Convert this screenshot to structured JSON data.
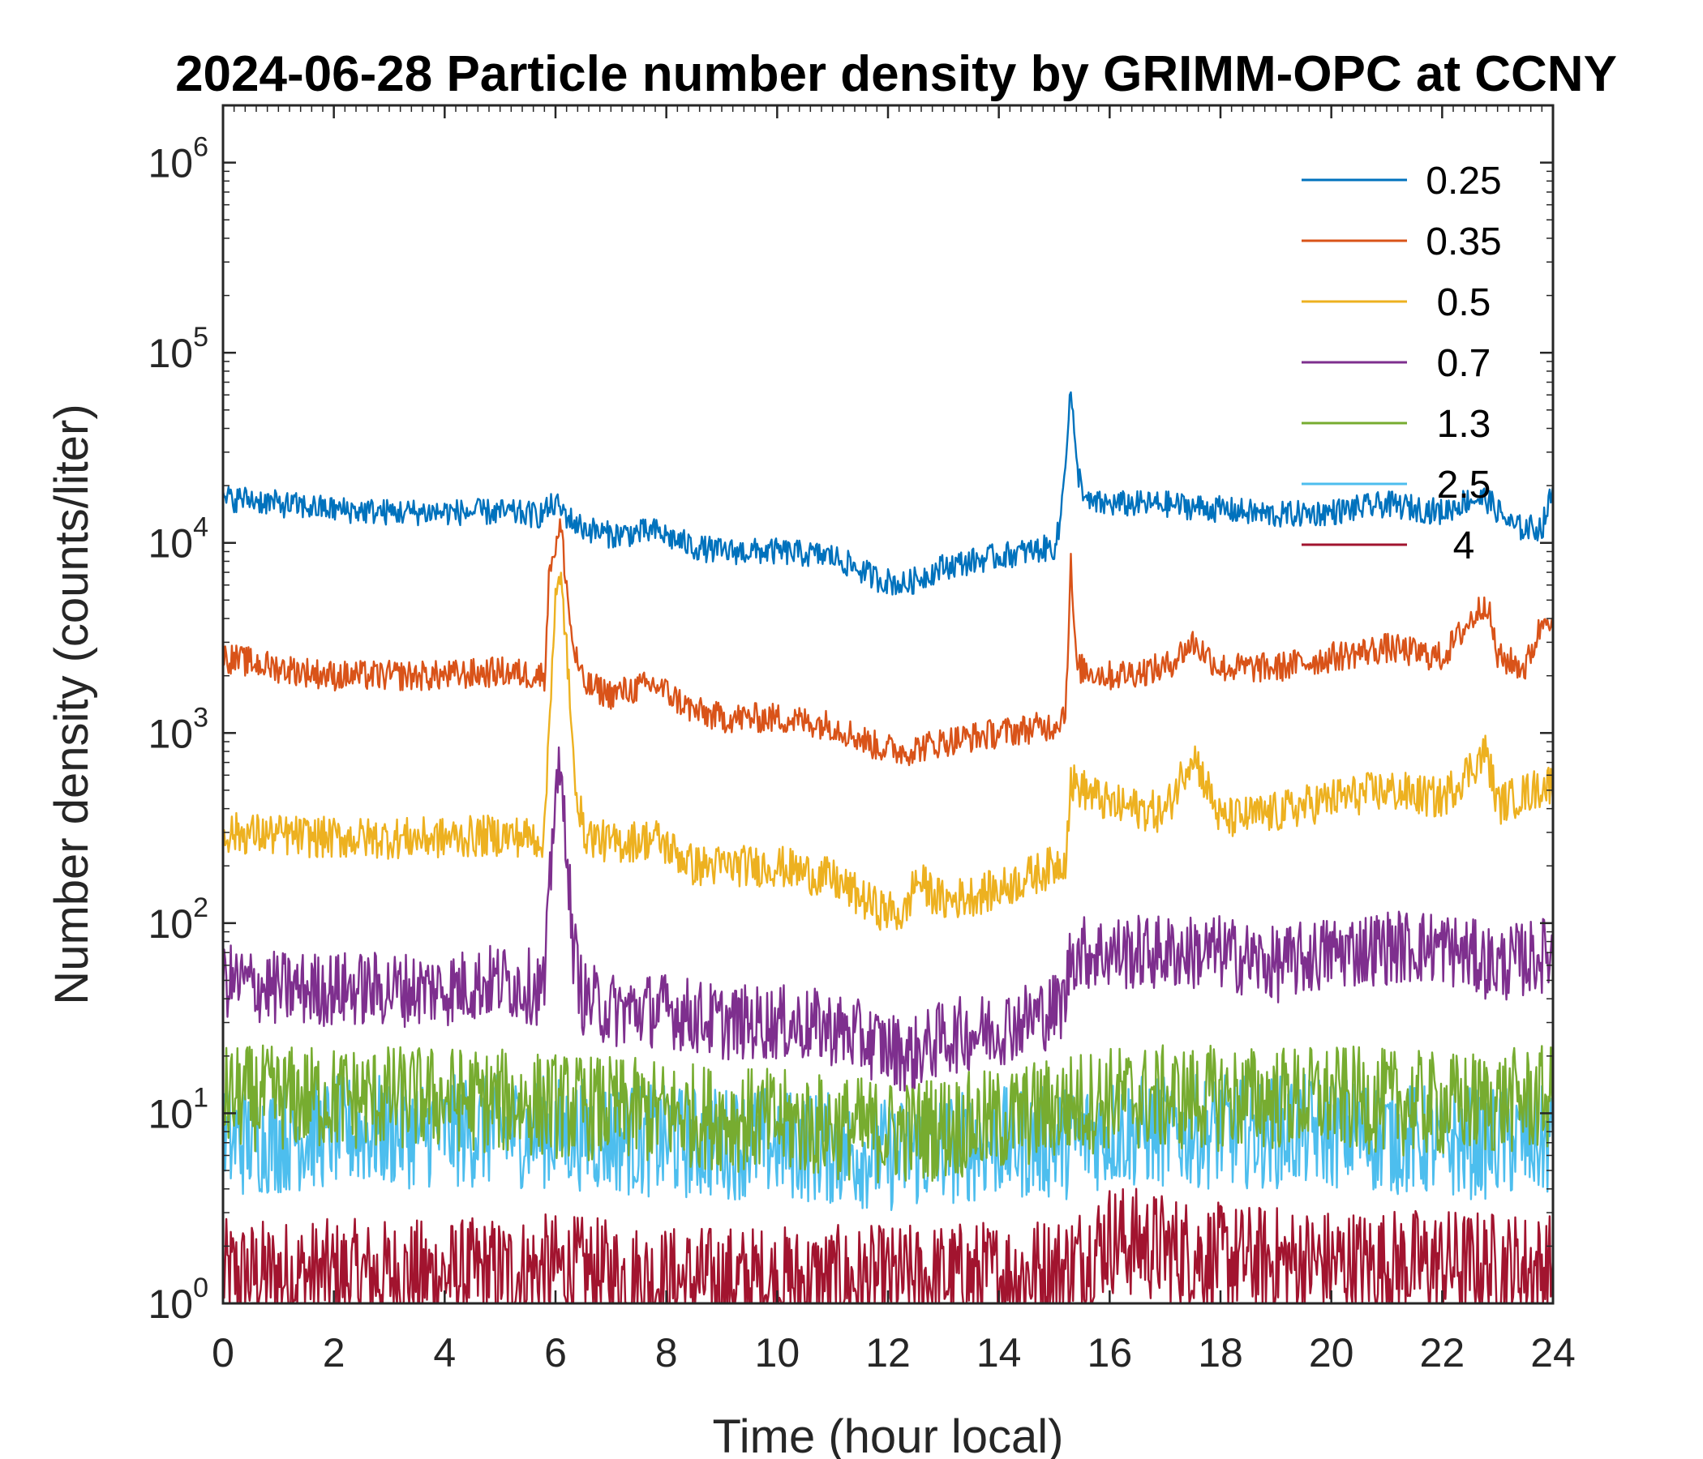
{
  "chart_data": {
    "type": "line",
    "title": "2024-06-28 Particle number density by GRIMM-OPC at CCNY",
    "xlabel": "Time (hour local)",
    "ylabel": "Number density (counts/liter)",
    "xlim": [
      0,
      24
    ],
    "ylim": [
      1,
      2000000
    ],
    "yscale": "log",
    "xticks": [
      0,
      2,
      4,
      6,
      8,
      10,
      12,
      14,
      16,
      18,
      20,
      22,
      24
    ],
    "xtick_labels": [
      "0",
      "2",
      "4",
      "6",
      "8",
      "10",
      "12",
      "14",
      "16",
      "18",
      "20",
      "22",
      "24"
    ],
    "yticks": [
      1,
      10,
      100,
      1000,
      10000,
      100000,
      1000000
    ],
    "ytick_labels": [
      {
        "base": "10",
        "exp": "0"
      },
      {
        "base": "10",
        "exp": "1"
      },
      {
        "base": "10",
        "exp": "2"
      },
      {
        "base": "10",
        "exp": "3"
      },
      {
        "base": "10",
        "exp": "4"
      },
      {
        "base": "10",
        "exp": "5"
      },
      {
        "base": "10",
        "exp": "6"
      }
    ],
    "grid": false,
    "legend_position": "top-right",
    "series": [
      {
        "name": "0.25",
        "color": "#0072BD",
        "x": [
          0,
          0.5,
          1,
          2,
          3,
          4,
          5,
          5.7,
          6.0,
          6.3,
          6.5,
          7,
          7.8,
          8.5,
          9,
          10,
          11,
          11.8,
          12.3,
          13,
          14,
          15,
          15.1,
          15.3,
          15.4,
          15.6,
          16,
          17,
          18,
          19,
          20,
          21,
          22,
          22.5,
          22.8,
          23.3,
          23.8,
          24
        ],
        "y": [
          17000,
          17000,
          16000,
          15000,
          14500,
          14500,
          14500,
          14000,
          16000,
          13000,
          12000,
          11000,
          11500,
          9500,
          9000,
          9000,
          8500,
          6500,
          6000,
          7500,
          8500,
          9500,
          12000,
          65000,
          25000,
          16000,
          16000,
          16000,
          15000,
          14000,
          14500,
          16000,
          14500,
          17000,
          17000,
          12000,
          12000,
          19000
        ]
      },
      {
        "name": "0.35",
        "color": "#D95319",
        "x": [
          0,
          1,
          2,
          3,
          4,
          5,
          5.8,
          5.9,
          6.0,
          6.1,
          6.2,
          6.3,
          6.5,
          7,
          7.8,
          8.5,
          9,
          10,
          11,
          11.8,
          12.3,
          13,
          14,
          15,
          15.2,
          15.3,
          15.4,
          16,
          17,
          17.5,
          18,
          19,
          20,
          21,
          22,
          22.8,
          23,
          23.5,
          23.9,
          24
        ],
        "y": [
          2500,
          2200,
          2000,
          2000,
          2000,
          2100,
          2000,
          8000,
          9500,
          12000,
          6000,
          3000,
          1800,
          1600,
          1800,
          1300,
          1200,
          1200,
          1100,
          850,
          800,
          900,
          1000,
          1100,
          1300,
          7500,
          2200,
          2000,
          2200,
          3000,
          2200,
          2200,
          2500,
          2800,
          2500,
          5000,
          2500,
          2200,
          4500,
          3500
        ]
      },
      {
        "name": "0.5",
        "color": "#EDB120",
        "x": [
          0,
          1,
          2,
          3,
          4,
          5,
          5.8,
          5.9,
          6.0,
          6.1,
          6.2,
          6.3,
          6.5,
          7,
          7.8,
          8.5,
          9,
          10,
          11,
          11.8,
          12.3,
          12.5,
          13,
          14,
          15,
          15.2,
          15.3,
          16,
          17,
          17.5,
          18,
          19,
          20,
          21,
          22,
          22.8,
          23,
          24
        ],
        "y": [
          300,
          290,
          280,
          280,
          280,
          290,
          280,
          1500,
          5000,
          6000,
          3000,
          800,
          300,
          260,
          280,
          200,
          200,
          200,
          170,
          120,
          110,
          170,
          130,
          150,
          200,
          220,
          550,
          420,
          380,
          800,
          350,
          380,
          450,
          500,
          450,
          800,
          420,
          550
        ]
      },
      {
        "name": "0.7",
        "color": "#7E2F8E",
        "x": [
          0,
          1,
          2,
          3,
          4,
          5,
          5.8,
          5.9,
          6.0,
          6.1,
          6.2,
          6.3,
          6.5,
          7,
          8,
          9,
          10,
          11,
          12,
          12.4,
          13,
          14,
          15,
          15.2,
          15.3,
          16,
          17,
          18,
          19,
          20,
          21,
          22,
          23,
          24
        ],
        "y": [
          50,
          45,
          45,
          45,
          45,
          50,
          45,
          150,
          600,
          500,
          300,
          80,
          40,
          35,
          35,
          30,
          30,
          28,
          22,
          20,
          25,
          28,
          35,
          40,
          70,
          70,
          70,
          70,
          60,
          70,
          75,
          75,
          60,
          70
        ]
      },
      {
        "name": "1.3",
        "color": "#77AC30",
        "x": [
          0,
          2,
          4,
          6,
          8,
          10,
          12,
          14,
          15.2,
          16,
          18,
          20,
          22,
          24
        ],
        "y": [
          12,
          12,
          12,
          11,
          10,
          9,
          8,
          9,
          11,
          12,
          12,
          12,
          11,
          12
        ]
      },
      {
        "name": "2.5",
        "color": "#4DBEEE",
        "x": [
          0,
          2,
          4,
          6,
          8,
          10,
          12,
          14,
          15.2,
          16,
          18,
          20,
          22,
          24
        ],
        "y": [
          7,
          8,
          8,
          8,
          7,
          7,
          6,
          7,
          7,
          8,
          8,
          8,
          7,
          7
        ]
      },
      {
        "name": "4",
        "color": "#A2142F",
        "x": [
          0,
          2,
          4,
          6,
          8,
          10,
          12,
          14,
          15.2,
          16,
          18,
          20,
          22,
          24
        ],
        "y": [
          1.4,
          1.4,
          1.4,
          1.5,
          1.3,
          1.3,
          1.3,
          1.4,
          1.5,
          2.2,
          1.7,
          1.6,
          1.6,
          1.5
        ]
      }
    ]
  }
}
